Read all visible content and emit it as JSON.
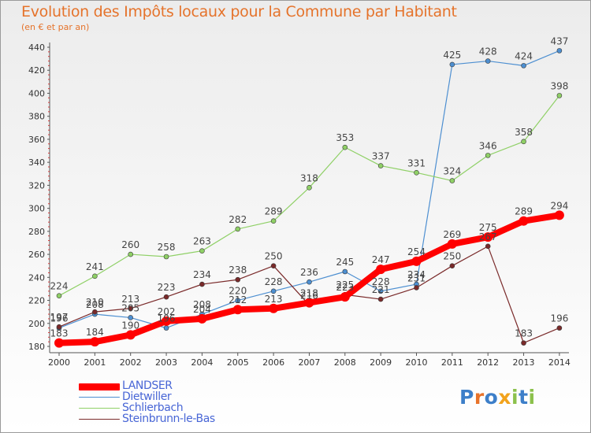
{
  "title": "Evolution des Impôts locaux pour la Commune par Habitant",
  "subtitle": "(en € et par an)",
  "logo": {
    "text": "Proxiti",
    "letters": [
      "P",
      "r",
      "o",
      "x",
      "i",
      "t",
      "i"
    ],
    "letter_colors": [
      "#3d7fc9",
      "#e8732a",
      "#3d7fc9",
      "#f2a31c",
      "#8cc14c",
      "#3d7fc9",
      "#8cc14c"
    ]
  },
  "chart_data": {
    "type": "line",
    "title": "Evolution des Impôts locaux pour la Commune par Habitant",
    "subtitle": "(en € et par an)",
    "xlabel": "",
    "ylabel": "",
    "ylim": [
      180,
      440
    ],
    "yticks": [
      180,
      200,
      220,
      240,
      260,
      280,
      300,
      320,
      340,
      360,
      380,
      400,
      420,
      440
    ],
    "categories": [
      "2000",
      "2001",
      "2002",
      "2003",
      "2004",
      "2005",
      "2006",
      "2007",
      "2008",
      "2009",
      "2010",
      "2011",
      "2012",
      "2013",
      "2014"
    ],
    "series": [
      {
        "name": "LANDSER",
        "color": "#ff0000",
        "values": [
          183,
          184,
          190,
          202,
          204,
          212,
          213,
          218,
          223,
          247,
          254,
          269,
          275,
          289,
          294
        ]
      },
      {
        "name": "Dietwiller",
        "color": "#4d8fd1",
        "values": [
          196,
          208,
          205,
          196,
          208,
          220,
          228,
          236,
          245,
          228,
          234,
          425,
          428,
          424,
          437
        ]
      },
      {
        "name": "Schlierbach",
        "color": "#8fd066",
        "values": [
          224,
          241,
          260,
          258,
          263,
          282,
          289,
          318,
          353,
          337,
          331,
          324,
          346,
          358,
          398
        ]
      },
      {
        "name": "Steinbrunn-le-Bas",
        "color": "#7a2a2a",
        "values": [
          197,
          210,
          213,
          223,
          234,
          238,
          250,
          216,
          225,
          221,
          231,
          250,
          267,
          183,
          196
        ]
      }
    ],
    "legend": [
      "LANDSER",
      "Dietwiller",
      "Schlierbach",
      "Steinbrunn-le-Bas"
    ],
    "legend_position": "bottom-left",
    "grid": false
  }
}
